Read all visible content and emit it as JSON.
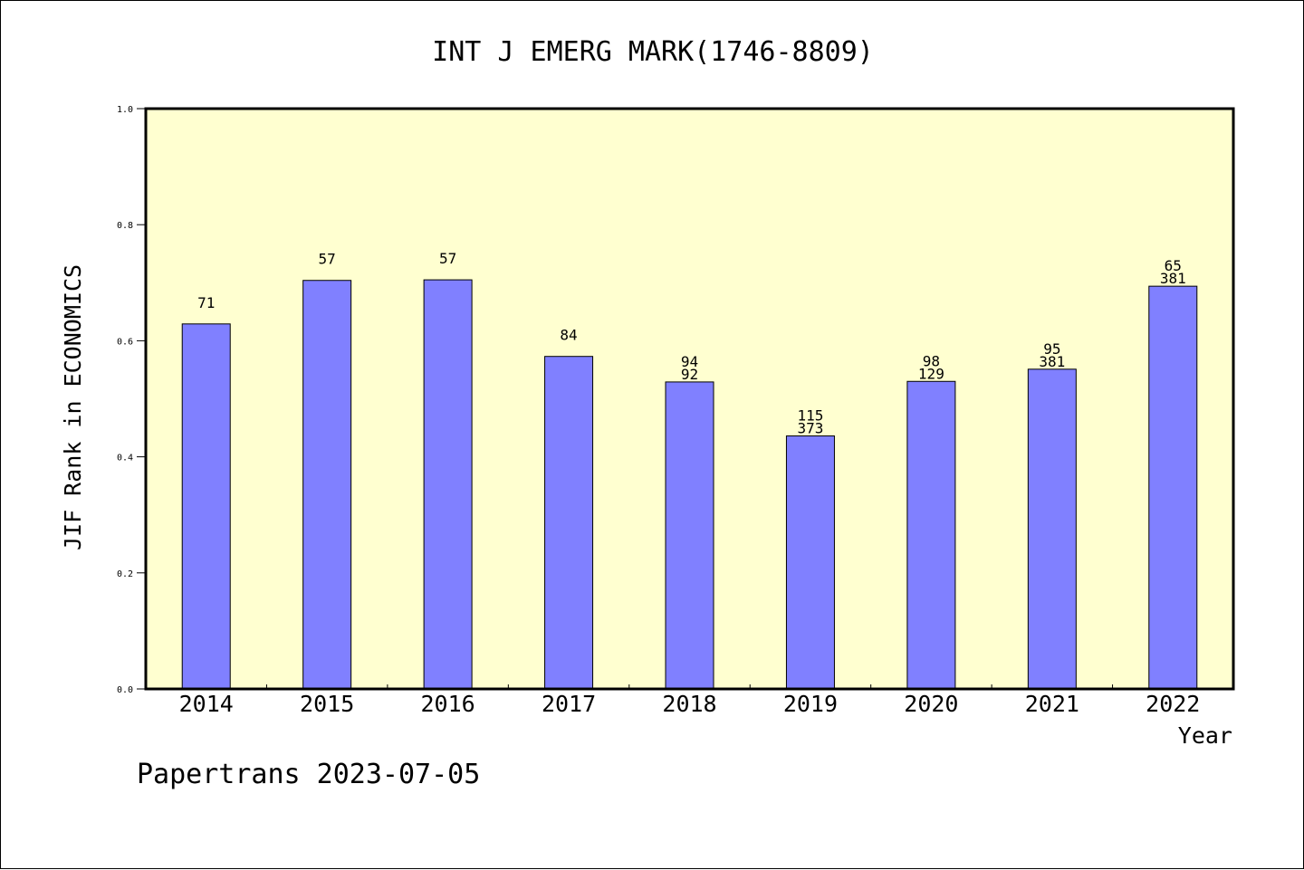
{
  "chart_data": {
    "type": "bar",
    "title": "INT J EMERG MARK(1746-8809)",
    "xlabel": "Year",
    "ylabel": "JIF Rank in ECONOMICS",
    "ylim": [
      0,
      1.0
    ],
    "yticks": [
      "0.0",
      "0.2",
      "0.4",
      "0.6",
      "0.8",
      "1.0"
    ],
    "categories": [
      "2014",
      "2015",
      "2016",
      "2017",
      "2018",
      "2019",
      "2020",
      "2021",
      "2022"
    ],
    "values": [
      0.629,
      0.704,
      0.705,
      0.573,
      0.529,
      0.436,
      0.53,
      0.551,
      0.694
    ],
    "bar_labels": [
      [
        "71"
      ],
      [
        "57"
      ],
      [
        "57"
      ],
      [
        "84"
      ],
      [
        "94",
        "92"
      ],
      [
        "115",
        "373"
      ],
      [
        "98",
        "129"
      ],
      [
        "95",
        "381"
      ],
      [
        "65",
        "381"
      ]
    ],
    "colors": {
      "plot_bg": "#FFFFD0",
      "bar": "#8080FF"
    },
    "grid": false,
    "legend": "none"
  },
  "footer": "Papertrans 2023-07-05"
}
